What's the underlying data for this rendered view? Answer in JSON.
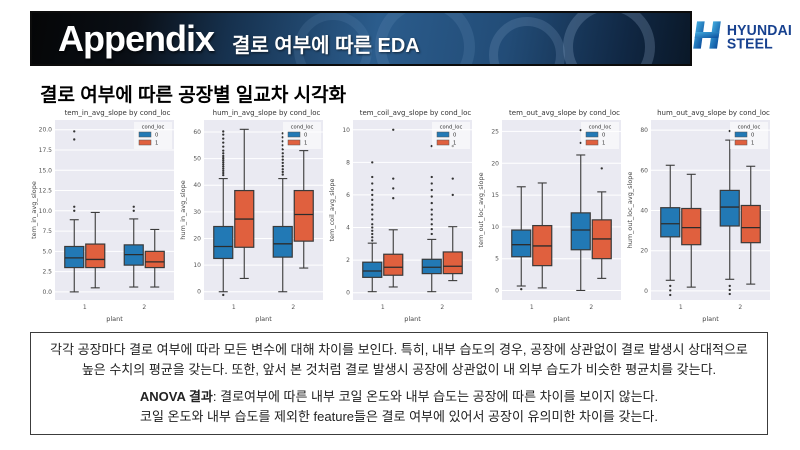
{
  "header": {
    "title": "Appendix",
    "subtitle": "결로 여부에 따른 EDA"
  },
  "logo": {
    "line1": "HYUNDAI",
    "line2": "STEEL"
  },
  "section_title": "결로 여부에 따른 공장별 일교차 시각화",
  "style": {
    "plot_bg": "#eaeaf2",
    "blue": "#2279b5",
    "red": "#e0603e",
    "edge": "#3a3a3a",
    "navy": "#17418f"
  },
  "chart_data": [
    {
      "type": "boxplot",
      "title": "tem_in_avg_slope by cond_loc",
      "ylabel": "tem_in_avg_slope",
      "xlabel": "plant",
      "categories": [
        "1",
        "2"
      ],
      "ylim": [
        -1.0,
        21.2
      ],
      "yticks": [
        0,
        2.5,
        5,
        7.5,
        10,
        12.5,
        15,
        17.5,
        20
      ],
      "ytick_labels": [
        "0.0",
        "2.5",
        "5.0",
        "7.5",
        "10.0",
        "12.5",
        "15.0",
        "17.5",
        "20.0"
      ],
      "legend": {
        "title": "cond_loc",
        "entries": [
          "0",
          "1"
        ]
      },
      "series": [
        {
          "name": "0",
          "boxes": [
            {
              "whislo": 0.0,
              "q1": 3.0,
              "med": 4.2,
              "q3": 5.6,
              "whishi": 8.9,
              "fliers": [
                10.0,
                10.5,
                18.8,
                19.8
              ]
            },
            {
              "whislo": 0.6,
              "q1": 3.3,
              "med": 4.6,
              "q3": 5.8,
              "whishi": 9.0,
              "fliers": [
                10.0,
                10.5
              ]
            }
          ]
        },
        {
          "name": "1",
          "boxes": [
            {
              "whislo": 0.5,
              "q1": 3.0,
              "med": 4.0,
              "q3": 5.9,
              "whishi": 9.8,
              "fliers": []
            },
            {
              "whislo": 0.6,
              "q1": 3.0,
              "med": 3.7,
              "q3": 5.0,
              "whishi": 7.7,
              "fliers": []
            }
          ]
        }
      ]
    },
    {
      "type": "boxplot",
      "title": "hum_in_avg_slope by cond_loc",
      "ylabel": "hum_in_avg_slope",
      "xlabel": "plant",
      "categories": [
        "1",
        "2"
      ],
      "ylim": [
        -3.1,
        64.5
      ],
      "yticks": [
        0,
        10,
        20,
        30,
        40,
        50,
        60
      ],
      "ytick_labels": [
        "0",
        "10",
        "20",
        "30",
        "40",
        "50",
        "60"
      ],
      "legend": {
        "title": "cond_loc",
        "entries": [
          "0",
          "1"
        ]
      },
      "series": [
        {
          "name": "0",
          "boxes": [
            {
              "whislo": 0.0,
              "q1": 12.5,
              "med": 17.0,
              "q3": 24.5,
              "whishi": 42.5,
              "fliers": [
                -1.2,
                43.8,
                44.6,
                45.4,
                46.2,
                47.0,
                47.8,
                48.6,
                49.4,
                50.2,
                51.0,
                52.0,
                53.0,
                54.5,
                56.0,
                57.5,
                59.0,
                60.2
              ]
            },
            {
              "whislo": 0.0,
              "q1": 13.0,
              "med": 18.0,
              "q3": 24.5,
              "whishi": 42.5,
              "fliers": [
                44.0,
                45.0,
                46.0,
                47.2,
                48.4,
                49.6,
                50.8,
                52.0,
                53.5,
                55.0,
                56.5,
                58.0,
                59.5
              ]
            }
          ]
        },
        {
          "name": "1",
          "boxes": [
            {
              "whislo": 5.0,
              "q1": 16.7,
              "med": 27.3,
              "q3": 38.0,
              "whishi": 61.0,
              "fliers": []
            },
            {
              "whislo": 8.9,
              "q1": 19.0,
              "med": 29.0,
              "q3": 38.0,
              "whishi": 53.0,
              "fliers": []
            }
          ]
        }
      ]
    },
    {
      "type": "boxplot",
      "title": "tem_coil_avg_slope by cond_loc",
      "ylabel": "tem_coil_avg_slope",
      "xlabel": "plant",
      "categories": [
        "1",
        "2"
      ],
      "ylim": [
        -0.45,
        10.6
      ],
      "yticks": [
        0,
        2,
        4,
        6,
        8,
        10
      ],
      "ytick_labels": [
        "0",
        "2",
        "4",
        "6",
        "8",
        "10"
      ],
      "legend": {
        "title": "cond_loc",
        "entries": [
          "0",
          "1"
        ]
      },
      "series": [
        {
          "name": "0",
          "boxes": [
            {
              "whislo": 0.06,
              "q1": 0.94,
              "med": 1.33,
              "q3": 1.87,
              "whishi": 3.04,
              "fliers": [
                3.2,
                3.4,
                3.6,
                3.8,
                4.0,
                4.2,
                4.5,
                4.8,
                5.1,
                5.4,
                5.7,
                6.0,
                6.3,
                6.7,
                7.1,
                8.0
              ]
            },
            {
              "whislo": 0.06,
              "q1": 1.17,
              "med": 1.56,
              "q3": 2.05,
              "whishi": 3.27,
              "fliers": [
                3.6,
                3.9,
                4.2,
                4.5,
                4.8,
                5.1,
                5.5,
                5.9,
                6.3,
                6.7,
                7.1,
                9.0
              ]
            }
          ]
        },
        {
          "name": "1",
          "boxes": [
            {
              "whislo": 0.35,
              "q1": 1.07,
              "med": 1.56,
              "q3": 2.36,
              "whishi": 3.86,
              "fliers": [
                5.8,
                6.4,
                7.0,
                10.0
              ]
            },
            {
              "whislo": 0.74,
              "q1": 1.17,
              "med": 1.62,
              "q3": 2.5,
              "whishi": 4.05,
              "fliers": [
                6.0,
                7.0,
                9.0
              ]
            }
          ]
        }
      ]
    },
    {
      "type": "boxplot",
      "title": "tem_out_avg_slope by cond_loc",
      "ylabel": "tem_out_loc_avg_slope",
      "xlabel": "plant",
      "categories": [
        "1",
        "2"
      ],
      "ylim": [
        -1.5,
        26.8
      ],
      "yticks": [
        0,
        5,
        10,
        15,
        20,
        25
      ],
      "ytick_labels": [
        "0",
        "5",
        "10",
        "15",
        "20",
        "25"
      ],
      "legend": {
        "title": "cond_loc",
        "entries": [
          "0",
          "1"
        ]
      },
      "series": [
        {
          "name": "0",
          "boxes": [
            {
              "whislo": 0.7,
              "q1": 5.3,
              "med": 7.2,
              "q3": 9.5,
              "whishi": 16.3,
              "fliers": [
                0.2
              ]
            },
            {
              "whislo": 0.0,
              "q1": 6.4,
              "med": 9.5,
              "q3": 12.2,
              "whishi": 21.3,
              "fliers": [
                23.2,
                25.2
              ]
            }
          ]
        },
        {
          "name": "1",
          "boxes": [
            {
              "whislo": 0.4,
              "q1": 3.9,
              "med": 7.0,
              "q3": 10.2,
              "whishi": 16.9,
              "fliers": []
            },
            {
              "whislo": 1.9,
              "q1": 5.0,
              "med": 8.1,
              "q3": 11.1,
              "whishi": 15.5,
              "fliers": [
                19.2
              ]
            }
          ]
        }
      ]
    },
    {
      "type": "boxplot",
      "title": "hum_out_avg_slope by cond_loc",
      "ylabel": "hum_out_loc_avg_slope",
      "xlabel": "plant",
      "categories": [
        "1",
        "2"
      ],
      "ylim": [
        -4.5,
        85
      ],
      "yticks": [
        0,
        20,
        40,
        60,
        80
      ],
      "ytick_labels": [
        "0",
        "20",
        "40",
        "60",
        "80"
      ],
      "legend": {
        "title": "cond_loc",
        "entries": [
          "0",
          "1"
        ]
      },
      "series": [
        {
          "name": "0",
          "boxes": [
            {
              "whislo": 5.3,
              "q1": 26.9,
              "med": 33.4,
              "q3": 41.4,
              "whishi": 62.5,
              "fliers": [
                2.5,
                0.3,
                -2.0
              ]
            },
            {
              "whislo": 5.8,
              "q1": 32.3,
              "med": 41.7,
              "q3": 50.0,
              "whishi": 75.0,
              "fliers": [
                79.5,
                2.5,
                0.5,
                -1.5
              ]
            }
          ]
        },
        {
          "name": "1",
          "boxes": [
            {
              "whislo": 1.9,
              "q1": 23.0,
              "med": 31.5,
              "q3": 41.0,
              "whishi": 58.0,
              "fliers": []
            },
            {
              "whislo": 3.4,
              "q1": 24.0,
              "med": 31.5,
              "q3": 42.5,
              "whishi": 62.0,
              "fliers": []
            }
          ]
        }
      ]
    }
  ],
  "summary": {
    "para1": "각각 공장마다 결로 여부에 따라 모든 변수에 대해 차이를 보인다. 특히, 내부 습도의 경우, 공장에 상관없이 결로 발생시 상대적으로 높은 수치의 평균을 갖는다. 또한, 앞서 본 것처럼 결로 발생시 공장에 상관없이 내 외부 습도가 비슷한 평균치를 갖는다.",
    "para2_label": "ANOVA 결과",
    "para2_text": ": 결로여부에 따른 내부 코일 온도와 내부 습도는 공장에 따른 차이를 보이지 않는다.",
    "para2_line2": "코일 온도와 내부 습도를 제외한 feature들은 결로 여부에 있어서 공장이 유의미한 차이를 갖는다."
  }
}
